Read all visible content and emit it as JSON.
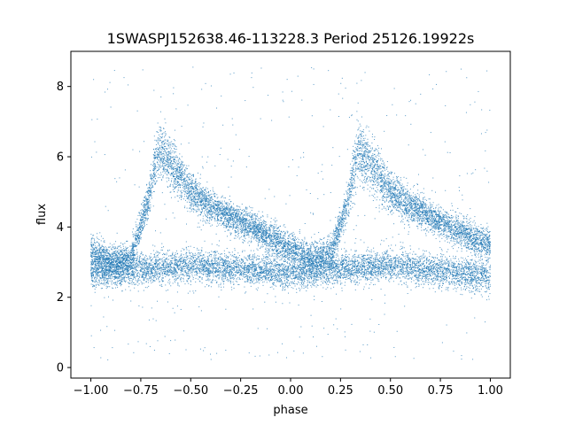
{
  "chart_data": {
    "type": "scatter",
    "title": "1SWASPJ152638.46-113228.3 Period 25126.19922s",
    "xlabel": "phase",
    "ylabel": "flux",
    "xlim": [
      -1.1,
      1.1
    ],
    "ylim": [
      -0.3,
      9.0
    ],
    "xticks": [
      -1.0,
      -0.75,
      -0.5,
      -0.25,
      0.0,
      0.25,
      0.5,
      0.75,
      1.0
    ],
    "xtick_labels": [
      "−1.00",
      "−0.75",
      "−0.50",
      "−0.25",
      "0.00",
      "0.25",
      "0.50",
      "0.75",
      "1.00"
    ],
    "yticks": [
      0,
      2,
      4,
      6,
      8
    ],
    "ytick_labels": [
      "0",
      "2",
      "4",
      "6",
      "8"
    ],
    "grid": false,
    "marker_color": "#1f77b4",
    "series": [
      {
        "description": "upper branch: light-curve peak and decay, repeated each phase cycle",
        "profile_x": [
          -1.0,
          -0.9,
          -0.8,
          -0.72,
          -0.66,
          -0.6,
          -0.5,
          -0.4,
          -0.3,
          -0.2,
          -0.1,
          0.0,
          0.1,
          0.2,
          0.28,
          0.34,
          0.4,
          0.5,
          0.6,
          0.7,
          0.8,
          0.9,
          1.0
        ],
        "profile_y": [
          3.3,
          3.0,
          3.1,
          4.6,
          6.2,
          5.8,
          5.0,
          4.6,
          4.3,
          4.0,
          3.7,
          3.4,
          3.1,
          3.2,
          4.6,
          6.2,
          5.8,
          5.0,
          4.6,
          4.3,
          4.0,
          3.7,
          3.5
        ]
      },
      {
        "description": "lower flat branch",
        "profile_x": [
          -1.0,
          -0.5,
          0.0,
          0.5,
          1.0
        ],
        "profile_y": [
          2.7,
          2.9,
          2.7,
          2.9,
          2.6
        ]
      }
    ]
  }
}
